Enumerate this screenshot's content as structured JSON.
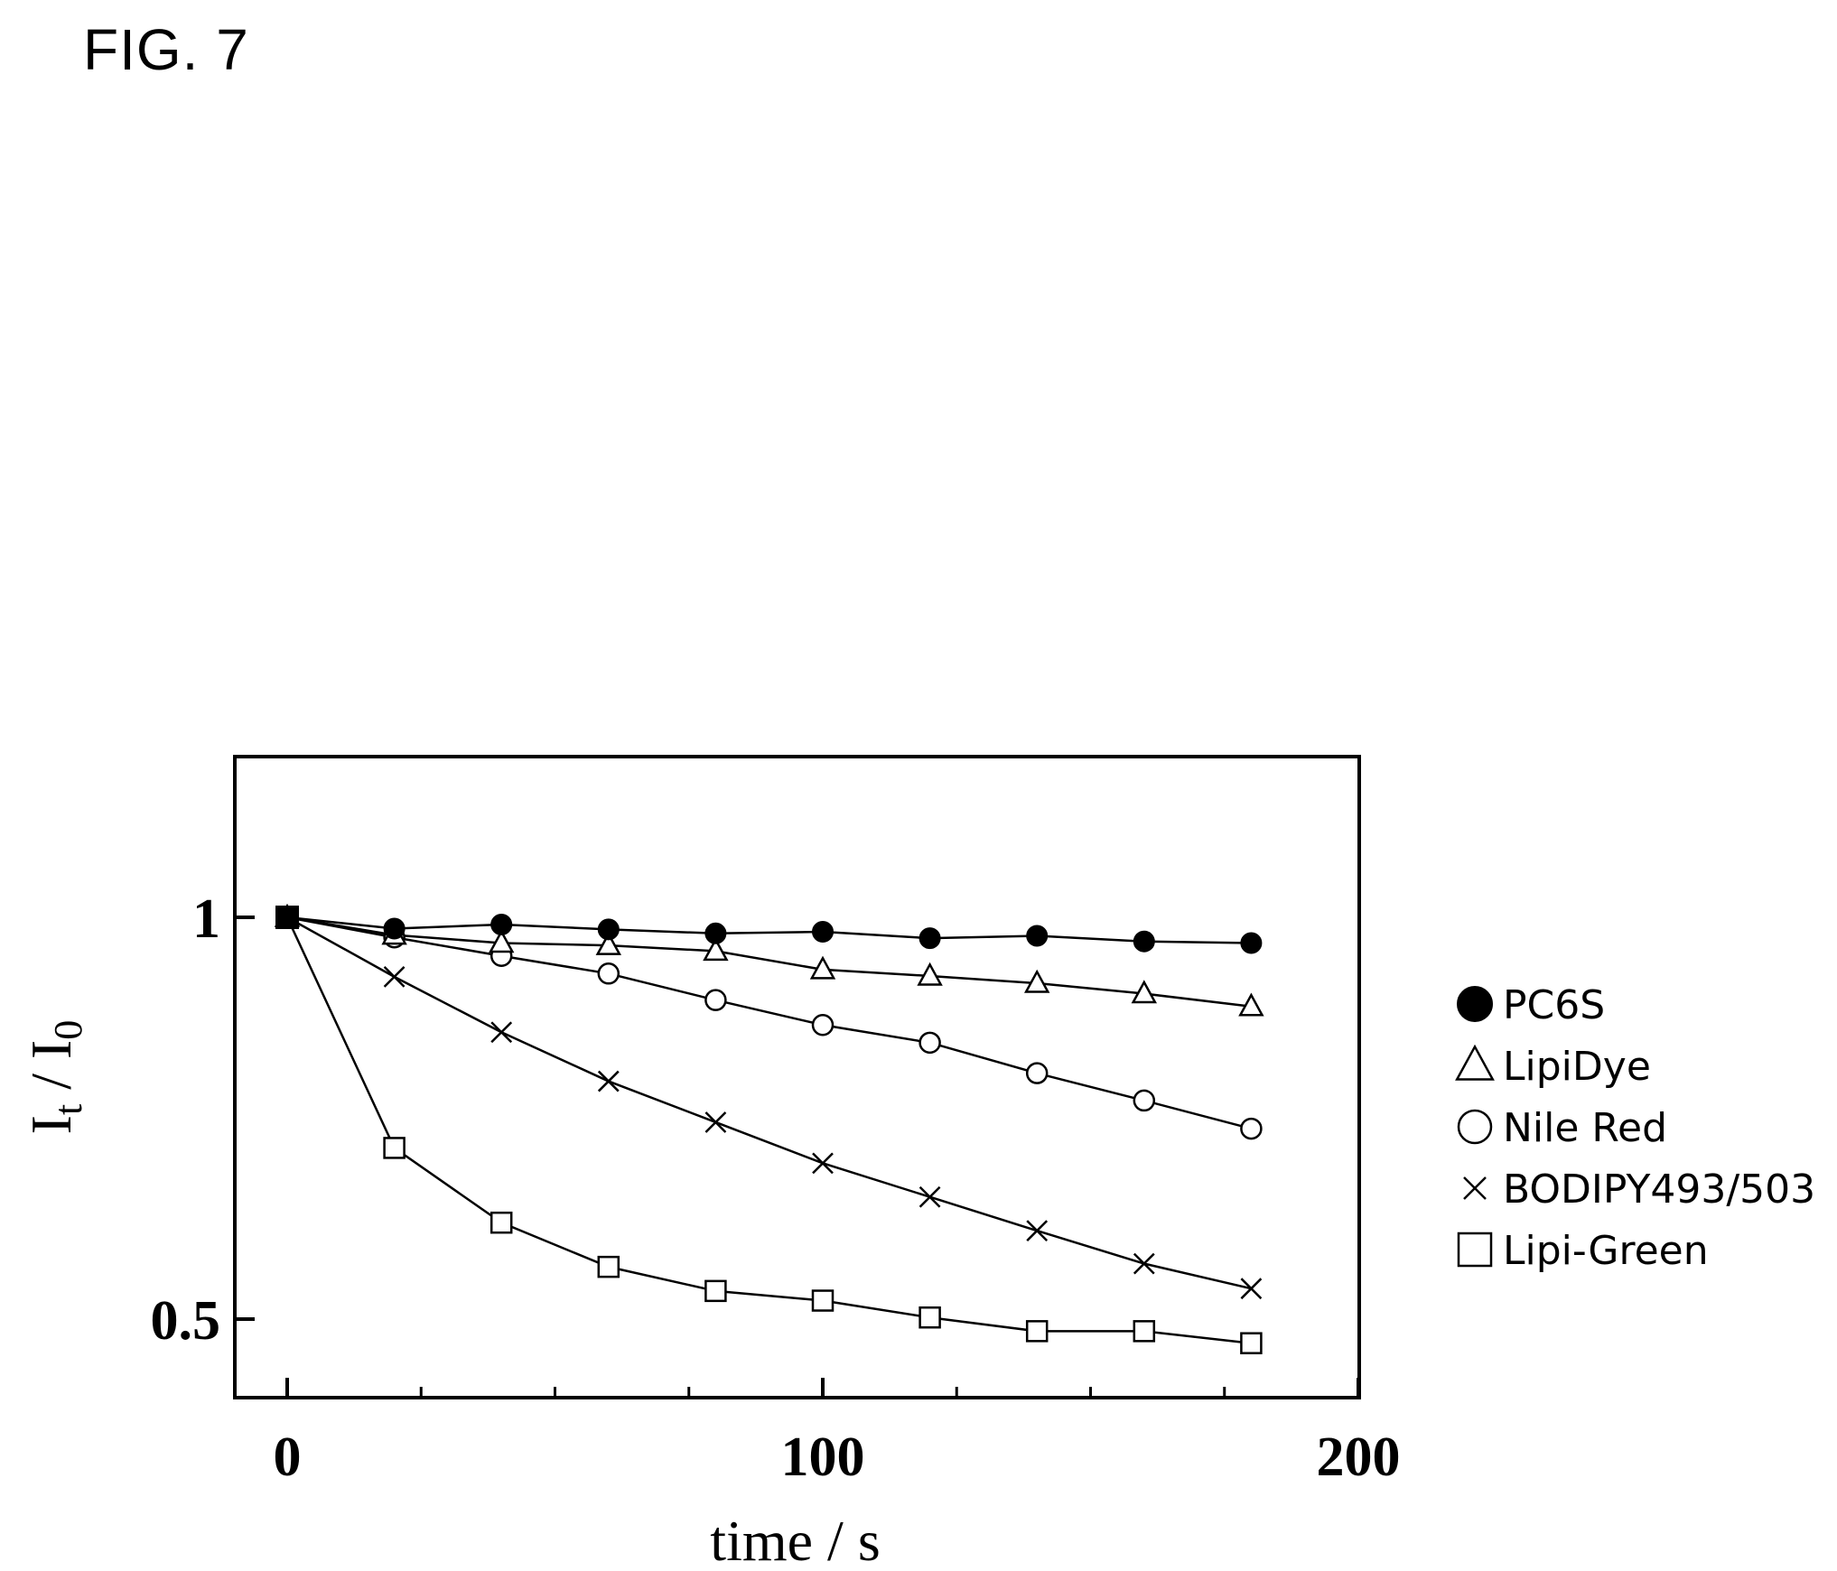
{
  "figure": {
    "label": "FIG. 7"
  },
  "chart_data": {
    "type": "line",
    "title": "",
    "xlabel": "time / s",
    "ylabel": "I",
    "ylabel_sub1": "t",
    "ylabel_sep": " / I",
    "ylabel_sub2": "0",
    "xlim": [
      -10,
      200
    ],
    "ylim": [
      0.4,
      1.2
    ],
    "x_ticks_major": [
      0,
      100,
      200
    ],
    "x_tick_labels": [
      "0",
      "100",
      "200"
    ],
    "x_ticks_minor": [
      25,
      50,
      75,
      125,
      150,
      175
    ],
    "y_ticks_major": [
      1,
      0.5
    ],
    "y_tick_labels": [
      "1",
      "0.5"
    ],
    "grid": false,
    "legend_position": "right",
    "x": [
      0,
      20,
      40,
      60,
      80,
      100,
      120,
      140,
      160,
      180
    ],
    "series": [
      {
        "name": "PC6S",
        "marker": "filled-circle",
        "values": [
          1.0,
          0.986,
          0.991,
          0.985,
          0.98,
          0.982,
          0.974,
          0.977,
          0.97,
          0.968
        ]
      },
      {
        "name": "LipiDye",
        "marker": "open-triangle",
        "values": [
          1.0,
          0.978,
          0.968,
          0.965,
          0.958,
          0.935,
          0.927,
          0.918,
          0.905,
          0.889
        ]
      },
      {
        "name": "Nile Red",
        "marker": "open-circle",
        "values": [
          1.0,
          0.975,
          0.952,
          0.93,
          0.897,
          0.866,
          0.844,
          0.806,
          0.772,
          0.737
        ]
      },
      {
        "name": "BODIPY493/503",
        "marker": "cross",
        "values": [
          1.0,
          0.926,
          0.857,
          0.796,
          0.745,
          0.694,
          0.652,
          0.61,
          0.569,
          0.538
        ]
      },
      {
        "name": "Lipi-Green",
        "marker": "open-square",
        "values": [
          1.0,
          0.713,
          0.62,
          0.565,
          0.535,
          0.523,
          0.502,
          0.485,
          0.485,
          0.47
        ]
      }
    ]
  }
}
